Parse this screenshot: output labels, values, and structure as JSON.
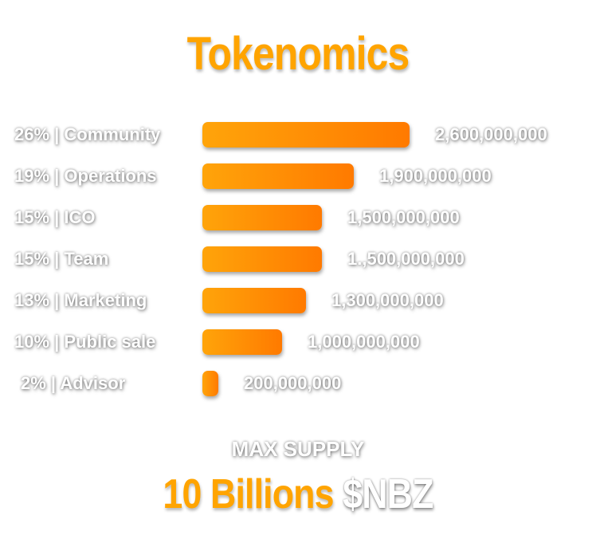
{
  "title": "Tokenomics",
  "colors": {
    "title": "#ffa400",
    "bar_start": "#ffa40a",
    "bar_end": "#ff7a00",
    "text": "#ffffff"
  },
  "chart_data": {
    "type": "bar",
    "orientation": "horizontal",
    "title": "Tokenomics",
    "categories": [
      "26% | Community",
      "19% | Operations",
      "15% | ICO",
      "15% | Team",
      "13% | Marketing",
      "10% | Public sale",
      "2% | Advisor"
    ],
    "percentages": [
      26,
      19,
      15,
      15,
      13,
      10,
      2
    ],
    "value_labels": [
      "2,600,000,000",
      "1,900,000,000",
      "1,500,000,000",
      "1.,500,000,000",
      "1,300,000,000",
      "1,000,000,000",
      "200,000,000"
    ],
    "values": [
      2600000000,
      1900000000,
      1500000000,
      1500000000,
      1300000000,
      1000000000,
      200000000
    ],
    "xlabel": "",
    "ylabel": ""
  },
  "supply": {
    "label": "MAX SUPPLY",
    "amount": "10 Billions",
    "ticker": "$NBZ"
  }
}
